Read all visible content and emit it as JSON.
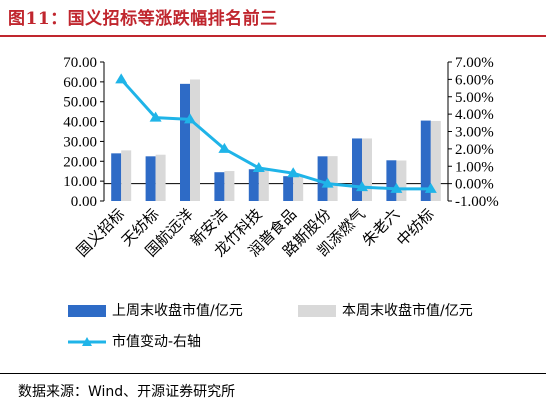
{
  "title": "图11：国义招标等涨跌幅排名前三",
  "source": "数据来源：Wind、开源证券研究所",
  "colors": {
    "this_week": "#2e6bc6",
    "last_week": "#d9d9d9",
    "change": "#1fb4e8",
    "title": "#c0262e"
  },
  "chart_data": {
    "type": "bar",
    "categories": [
      "国义招标",
      "天纺标",
      "国航远洋",
      "新安洁",
      "龙竹科技",
      "润普食品",
      "路斯股份",
      "凯添燃气",
      "朱老六",
      "中纺标"
    ],
    "left_axis": {
      "ticks": [
        "0.00",
        "10.00",
        "20.00",
        "30.00",
        "40.00",
        "50.00",
        "60.00",
        "70.00"
      ],
      "ylim": [
        0,
        70
      ]
    },
    "right_axis": {
      "ticks": [
        "-1.00%",
        "0.00%",
        "1.00%",
        "2.00%",
        "3.00%",
        "4.00%",
        "5.00%",
        "6.00%",
        "7.00%"
      ],
      "ylim": [
        -1,
        7
      ]
    },
    "series": [
      {
        "name": "上周末收盘市值/亿元",
        "type": "bar",
        "axis": "left",
        "values": [
          24.0,
          22.5,
          59.0,
          14.5,
          16.0,
          12.5,
          22.5,
          31.5,
          20.5,
          40.5
        ]
      },
      {
        "name": "本周末收盘市值/亿元",
        "type": "bar",
        "axis": "left",
        "values": [
          25.5,
          23.3,
          61.2,
          15.1,
          16.3,
          13.0,
          22.6,
          31.5,
          20.4,
          40.3
        ]
      },
      {
        "name": "市值变动-右轴",
        "type": "line",
        "axis": "right",
        "values": [
          6.0,
          3.8,
          3.7,
          2.0,
          0.9,
          0.6,
          0.0,
          -0.2,
          -0.3,
          -0.3
        ]
      }
    ],
    "legend": [
      "上周末收盘市值/亿元",
      "本周末收盘市值/亿元",
      "市值变动-右轴"
    ]
  }
}
